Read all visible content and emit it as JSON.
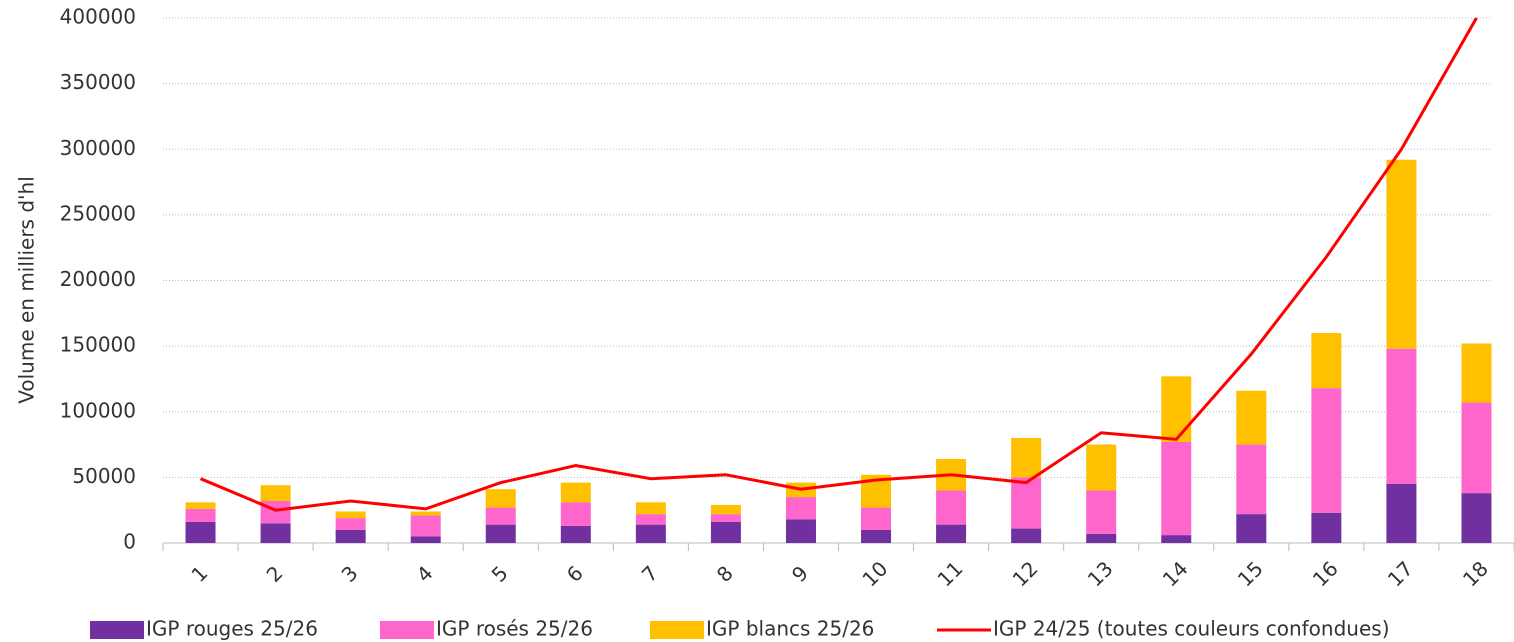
{
  "chart_data": {
    "type": "bar",
    "stacked": true,
    "y_axis_label": "Volume en  milliers d'hl",
    "categories": [
      "1",
      "2",
      "3",
      "4",
      "5",
      "6",
      "7",
      "8",
      "9",
      "10",
      "11",
      "12",
      "13",
      "14",
      "15",
      "16",
      "17",
      "18"
    ],
    "series": [
      {
        "name": "IGP rouges 25/26",
        "color": "#7030a0",
        "type": "bar",
        "values": [
          16000,
          15000,
          10000,
          5000,
          14000,
          13000,
          14000,
          16000,
          18000,
          10000,
          14000,
          11000,
          7000,
          6000,
          22000,
          23000,
          45000,
          38000
        ]
      },
      {
        "name": "IGP rosés 25/26",
        "color": "#ff66cc",
        "type": "bar",
        "values": [
          10000,
          17000,
          9000,
          16000,
          13000,
          18000,
          8000,
          6000,
          17000,
          17000,
          26000,
          39000,
          33000,
          71000,
          53000,
          95000,
          103000,
          69000
        ]
      },
      {
        "name": "IGP blancs 25/26",
        "color": "#ffc000",
        "type": "bar",
        "values": [
          5000,
          12000,
          5000,
          3000,
          14000,
          15000,
          9000,
          7000,
          11000,
          25000,
          24000,
          30000,
          35000,
          50000,
          41000,
          42000,
          144000,
          45000
        ]
      },
      {
        "name": "IGP 24/25 (toutes couleurs confondues)",
        "color": "#ff0000",
        "type": "line",
        "values": [
          49000,
          25000,
          32000,
          26000,
          46000,
          59000,
          49000,
          52000,
          41000,
          48000,
          52000,
          46000,
          84000,
          79000,
          144000,
          218000,
          300000,
          400000
        ]
      }
    ],
    "ylim": [
      0,
      400000
    ],
    "yticks": [
      0,
      50000,
      100000,
      150000,
      200000,
      250000,
      300000,
      350000,
      400000
    ],
    "grid": true,
    "legend": "bottom"
  }
}
